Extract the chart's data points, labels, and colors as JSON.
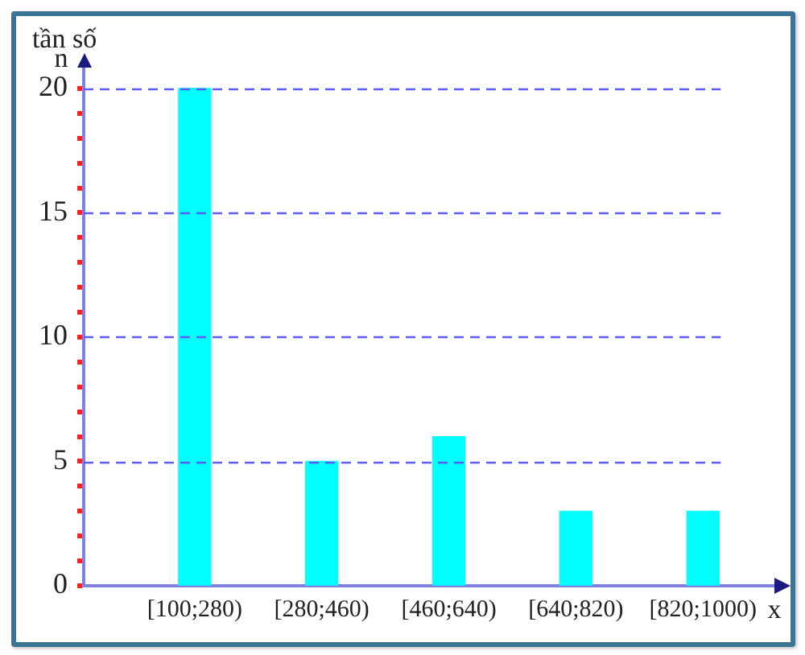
{
  "chart_data": {
    "type": "bar",
    "xlabel": "x",
    "ylabel": "n",
    "annotations": [
      "tần số"
    ],
    "categories": [
      "[100;280)",
      "[280;460)",
      "[460;640)",
      "[640;820)",
      "[820;1000)"
    ],
    "values": [
      20,
      5,
      6,
      3,
      3
    ],
    "color": "#00ffff",
    "ylim": [
      0,
      21
    ],
    "yticks": [
      0,
      {
        "value": 1,
        "label": null
      },
      {
        "value": 2,
        "label": null
      },
      {
        "value": 3,
        "label": null
      },
      {
        "value": 4,
        "label": null
      },
      5,
      {
        "value": 6,
        "label": null
      },
      {
        "value": 7,
        "label": null
      },
      {
        "value": 8,
        "label": null
      },
      {
        "value": 9,
        "label": null
      },
      10,
      {
        "value": 11,
        "label": null
      },
      {
        "value": 12,
        "label": null
      },
      {
        "value": 13,
        "label": null
      },
      {
        "value": 14,
        "label": null
      },
      15,
      {
        "value": 16,
        "label": null
      },
      {
        "value": 17,
        "label": null
      },
      {
        "value": 18,
        "label": null
      },
      {
        "value": 19,
        "label": null
      },
      20
    ],
    "grid": "y"
  }
}
